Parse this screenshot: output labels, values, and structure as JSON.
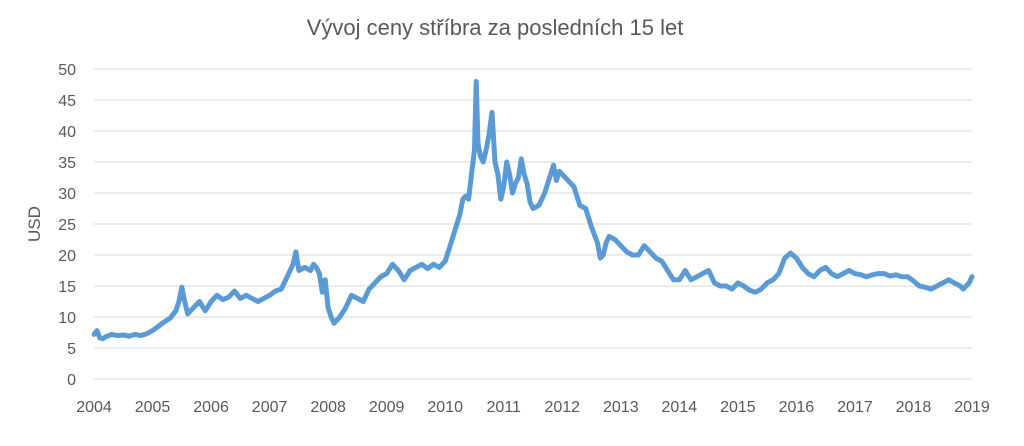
{
  "chart_data": {
    "type": "line",
    "title": "Vývoj ceny stříbra za posledních 15 let",
    "xlabel": "",
    "ylabel": "USD",
    "xlim": [
      2004,
      2019
    ],
    "ylim": [
      0,
      50
    ],
    "x_ticks": [
      "2004",
      "2005",
      "2006",
      "2007",
      "2008",
      "2009",
      "2010",
      "2011",
      "2012",
      "2013",
      "2014",
      "2015",
      "2016",
      "2017",
      "2018",
      "2019"
    ],
    "y_ticks": [
      "0",
      "5",
      "10",
      "15",
      "20",
      "25",
      "30",
      "35",
      "40",
      "45",
      "50"
    ],
    "grid": true,
    "legend": "none",
    "colors": {
      "series": "#5b9bd5",
      "grid": "#d9d9d9",
      "text": "#595959"
    },
    "series": [
      {
        "x": [
          2004.0,
          2004.05,
          2004.1,
          2004.15,
          2004.2,
          2004.3,
          2004.4,
          2004.5,
          2004.6,
          2004.7,
          2004.8,
          2004.9,
          2005.0,
          2005.1,
          2005.2,
          2005.3,
          2005.4,
          2005.45,
          2005.5,
          2005.55,
          2005.6,
          2005.7,
          2005.8,
          2005.9,
          2006.0,
          2006.1,
          2006.2,
          2006.3,
          2006.4,
          2006.5,
          2006.6,
          2006.7,
          2006.8,
          2006.9,
          2007.0,
          2007.1,
          2007.2,
          2007.3,
          2007.35,
          2007.4,
          2007.45,
          2007.5,
          2007.6,
          2007.7,
          2007.75,
          2007.8,
          2007.85,
          2007.9,
          2007.95,
          2008.0,
          2008.05,
          2008.1,
          2008.2,
          2008.3,
          2008.4,
          2008.5,
          2008.6,
          2008.7,
          2008.8,
          2008.9,
          2009.0,
          2009.1,
          2009.2,
          2009.3,
          2009.4,
          2009.5,
          2009.6,
          2009.7,
          2009.8,
          2009.9,
          2010.0,
          2010.1,
          2010.2,
          2010.25,
          2010.3,
          2010.35,
          2010.4,
          2010.45,
          2010.5,
          2010.53,
          2010.56,
          2010.6,
          2010.65,
          2010.7,
          2010.75,
          2010.8,
          2010.85,
          2010.9,
          2010.95,
          2011.0,
          2011.05,
          2011.1,
          2011.15,
          2011.2,
          2011.25,
          2011.3,
          2011.35,
          2011.4,
          2011.45,
          2011.5,
          2011.6,
          2011.7,
          2011.8,
          2011.85,
          2011.9,
          2011.95,
          2012.0,
          2012.1,
          2012.2,
          2012.3,
          2012.4,
          2012.5,
          2012.6,
          2012.65,
          2012.7,
          2012.75,
          2012.8,
          2012.9,
          2013.0,
          2013.1,
          2013.2,
          2013.3,
          2013.4,
          2013.5,
          2013.6,
          2013.7,
          2013.8,
          2013.9,
          2014.0,
          2014.1,
          2014.2,
          2014.3,
          2014.4,
          2014.5,
          2014.6,
          2014.7,
          2014.8,
          2014.9,
          2015.0,
          2015.1,
          2015.2,
          2015.3,
          2015.4,
          2015.5,
          2015.6,
          2015.7,
          2015.8,
          2015.9,
          2016.0,
          2016.1,
          2016.2,
          2016.3,
          2016.4,
          2016.5,
          2016.6,
          2016.7,
          2016.8,
          2016.9,
          2017.0,
          2017.1,
          2017.2,
          2017.3,
          2017.4,
          2017.5,
          2017.6,
          2017.7,
          2017.8,
          2017.9,
          2018.0,
          2018.1,
          2018.2,
          2018.3,
          2018.4,
          2018.5,
          2018.6,
          2018.7,
          2018.8,
          2018.85,
          2018.9,
          2018.95,
          2019.0
        ],
        "y": [
          7.2,
          7.8,
          6.6,
          6.5,
          6.8,
          7.2,
          7.0,
          7.1,
          6.9,
          7.2,
          7.0,
          7.3,
          7.8,
          8.5,
          9.2,
          9.8,
          11.0,
          12.5,
          14.8,
          12.5,
          10.5,
          11.5,
          12.5,
          11.0,
          12.5,
          13.5,
          12.8,
          13.2,
          14.2,
          13.0,
          13.5,
          13.0,
          12.5,
          13.0,
          13.5,
          14.2,
          14.5,
          16.5,
          17.5,
          18.5,
          20.5,
          17.5,
          18.0,
          17.5,
          18.5,
          18.0,
          17.0,
          14.0,
          16.0,
          11.5,
          10.0,
          9.0,
          10.0,
          11.5,
          13.5,
          13.0,
          12.5,
          14.5,
          15.5,
          16.5,
          17.0,
          18.5,
          17.5,
          16.0,
          17.5,
          18.0,
          18.5,
          17.8,
          18.5,
          18.0,
          19.0,
          22.0,
          25.0,
          26.5,
          29.0,
          29.5,
          29.0,
          33.0,
          37.0,
          48.0,
          38.0,
          36.0,
          35.0,
          37.0,
          39.5,
          43.0,
          35.0,
          33.0,
          29.0,
          31.0,
          35.0,
          33.0,
          30.0,
          31.5,
          32.5,
          35.5,
          33.0,
          31.5,
          28.5,
          27.5,
          28.0,
          30.0,
          33.0,
          34.5,
          32.0,
          33.5,
          33.0,
          32.0,
          31.0,
          28.0,
          27.5,
          24.5,
          22.0,
          19.5,
          20.0,
          22.0,
          23.0,
          22.5,
          21.5,
          20.5,
          20.0,
          20.0,
          21.5,
          20.5,
          19.5,
          19.0,
          17.5,
          16.0,
          16.0,
          17.5,
          16.0,
          16.5,
          17.0,
          17.5,
          15.5,
          15.0,
          15.0,
          14.5,
          15.5,
          15.0,
          14.3,
          14.0,
          14.5,
          15.5,
          16.0,
          17.0,
          19.5,
          20.3,
          19.5,
          18.0,
          17.0,
          16.5,
          17.5,
          18.0,
          17.0,
          16.5,
          17.0,
          17.5,
          17.0,
          16.8,
          16.5,
          16.8,
          17.0,
          17.0,
          16.6,
          16.8,
          16.5,
          16.5,
          15.8,
          15.0,
          14.8,
          14.5,
          15.0,
          15.5,
          16.0,
          15.5,
          15.0,
          14.5,
          15.0,
          15.5,
          16.5
        ]
      }
    ]
  }
}
